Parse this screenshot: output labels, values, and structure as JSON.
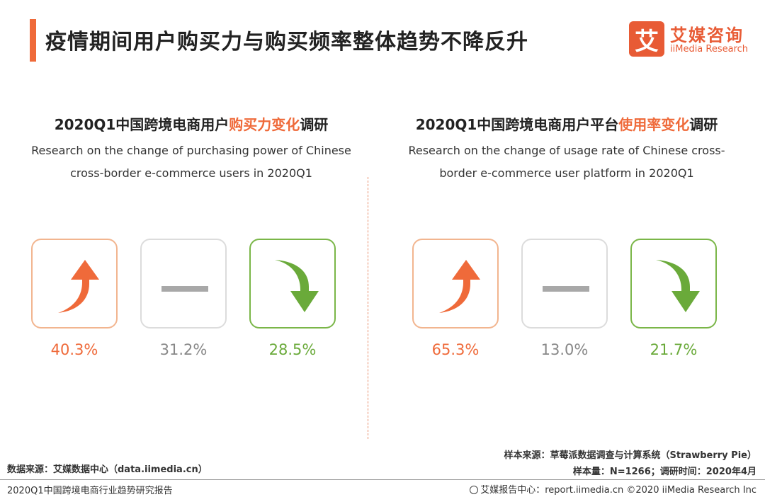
{
  "header": {
    "title": "疫情期间用户购买力与购买频率整体趋势不降反升",
    "logo_mark": "艾",
    "logo_cn": "艾媒咨询",
    "logo_en": "iiMedia Research"
  },
  "chart_data": [
    {
      "type": "table",
      "title_prefix": "2020Q1中国跨境电商用户",
      "title_highlight": "购买力变化",
      "title_suffix": "调研",
      "subtitle": "Research on the change of purchasing power of Chinese cross-border e-commerce users in 2020Q1",
      "categories": [
        "up",
        "flat",
        "down"
      ],
      "values": [
        40.3,
        31.2,
        28.5
      ],
      "labels": [
        "40.3%",
        "31.2%",
        "28.5%"
      ]
    },
    {
      "type": "table",
      "title_prefix": "2020Q1中国跨境电商用户平台",
      "title_highlight": "使用率变化",
      "title_suffix": "调研",
      "subtitle": "Research on the change of usage rate of Chinese cross-border e-commerce user platform in 2020Q1",
      "categories": [
        "up",
        "flat",
        "down"
      ],
      "values": [
        65.3,
        13.0,
        21.7
      ],
      "labels": [
        "65.3%",
        "13.0%",
        "21.7%"
      ]
    }
  ],
  "colors": {
    "up": "#ef6a3a",
    "flat": "#a8a8a8",
    "down": "#6aaa3a"
  },
  "icons": {
    "up": "arrow-up-curved-icon",
    "flat": "dash-icon",
    "down": "arrow-down-curved-icon"
  },
  "footer": {
    "data_source": "数据来源：艾媒数据中心（data.iimedia.cn）",
    "report_name": "2020Q1中国跨境电商行业趋势研究报告",
    "sample_source": "样本来源：草莓派数据调查与计算系统（Strawberry Pie）",
    "sample_size": "样本量：N=1266；调研时间：2020年4月",
    "report_center": "艾媒报告中心：report.iimedia.cn  ©2020  iiMedia Research  Inc"
  }
}
